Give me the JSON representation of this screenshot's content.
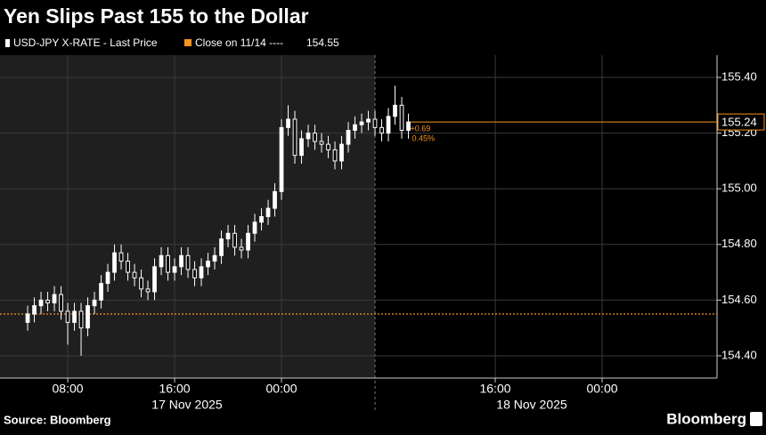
{
  "chart_data": {
    "type": "candlestick",
    "title": "Yen Slips Past 155 to the Dollar",
    "source": "Source: Bloomberg",
    "brand": "Bloomberg",
    "series": [
      {
        "name": "USD-JPY X-RATE - Last Price",
        "color": "#ffffff",
        "x": [
          5.0,
          5.5,
          6.0,
          6.5,
          7.0,
          7.5,
          8.0,
          8.5,
          9.0,
          9.5,
          10.0,
          10.5,
          11.0,
          11.5,
          12.0,
          12.5,
          13.0,
          13.5,
          14.0,
          14.5,
          15.0,
          15.5,
          16.0,
          16.5,
          17.0,
          17.5,
          18.0,
          18.5,
          19.0,
          19.5,
          20.0,
          20.5,
          21.0,
          21.5,
          22.0,
          22.5,
          23.0,
          23.5,
          24.0,
          24.5,
          25.0,
          25.5,
          26.0,
          26.5,
          27.0,
          27.5,
          28.0,
          28.5,
          29.0,
          29.5,
          30.0,
          30.5,
          31.0,
          31.5,
          32.0,
          32.5,
          33.0,
          33.5
        ],
        "open": [
          154.52,
          154.55,
          154.58,
          154.6,
          154.59,
          154.62,
          154.56,
          154.52,
          154.56,
          154.5,
          154.58,
          154.6,
          154.66,
          154.7,
          154.77,
          154.74,
          154.7,
          154.68,
          154.64,
          154.63,
          154.72,
          154.76,
          154.7,
          154.72,
          154.76,
          154.71,
          154.68,
          154.72,
          154.74,
          154.76,
          154.82,
          154.84,
          154.79,
          154.78,
          154.84,
          154.88,
          154.9,
          154.93,
          154.99,
          155.22,
          155.25,
          155.12,
          155.18,
          155.2,
          155.17,
          155.16,
          155.14,
          155.1,
          155.16,
          155.21,
          155.23,
          155.24,
          155.25,
          155.22,
          155.2,
          155.26,
          155.3,
          155.21
        ],
        "high": [
          154.58,
          154.61,
          154.63,
          154.63,
          154.65,
          154.65,
          154.59,
          154.59,
          154.59,
          154.61,
          154.63,
          154.69,
          154.73,
          154.8,
          154.8,
          154.77,
          154.73,
          154.71,
          154.67,
          154.75,
          154.79,
          154.79,
          154.75,
          154.79,
          154.79,
          154.74,
          154.75,
          154.77,
          154.79,
          154.85,
          154.87,
          154.87,
          154.82,
          154.87,
          154.91,
          154.93,
          154.96,
          155.02,
          155.25,
          155.3,
          155.28,
          155.21,
          155.23,
          155.23,
          155.2,
          155.19,
          155.17,
          155.19,
          155.24,
          155.26,
          155.27,
          155.28,
          155.28,
          155.25,
          155.29,
          155.37,
          155.33,
          155.27
        ],
        "low": [
          154.49,
          154.52,
          154.55,
          154.56,
          154.56,
          154.53,
          154.44,
          154.49,
          154.4,
          154.47,
          154.55,
          154.57,
          154.63,
          154.67,
          154.71,
          154.67,
          154.65,
          154.61,
          154.6,
          154.6,
          154.69,
          154.67,
          154.67,
          154.69,
          154.68,
          154.65,
          154.65,
          154.69,
          154.71,
          154.73,
          154.79,
          154.76,
          154.75,
          154.75,
          154.81,
          154.85,
          154.87,
          154.9,
          154.96,
          155.19,
          155.09,
          155.09,
          155.15,
          155.14,
          155.13,
          155.11,
          155.07,
          155.07,
          155.13,
          155.18,
          155.2,
          155.21,
          155.19,
          155.17,
          155.17,
          155.23,
          155.18,
          155.18
        ],
        "close": [
          154.55,
          154.58,
          154.6,
          154.59,
          154.62,
          154.56,
          154.52,
          154.56,
          154.5,
          154.58,
          154.6,
          154.66,
          154.7,
          154.77,
          154.74,
          154.7,
          154.68,
          154.64,
          154.63,
          154.72,
          154.76,
          154.7,
          154.72,
          154.76,
          154.71,
          154.68,
          154.72,
          154.74,
          154.76,
          154.82,
          154.84,
          154.79,
          154.78,
          154.84,
          154.88,
          154.9,
          154.93,
          154.99,
          155.22,
          155.25,
          155.12,
          155.18,
          155.2,
          155.17,
          155.16,
          155.14,
          155.1,
          155.16,
          155.21,
          155.23,
          155.24,
          155.25,
          155.22,
          155.2,
          155.26,
          155.3,
          155.21,
          155.24
        ]
      }
    ],
    "reference_line": {
      "name": "Close on 11/14 ----",
      "value": 154.55,
      "color": "#f7931e"
    },
    "last_price": {
      "value": 155.24,
      "color": "#f7931e"
    },
    "change": {
      "value": 0.69,
      "label": "+0.69"
    },
    "change_pct": {
      "value": 0.45,
      "label": "0.45%"
    },
    "xlim": [
      2.93,
      56.6
    ],
    "xticks": [
      {
        "value": 8,
        "label": "08:00"
      },
      {
        "value": 16,
        "label": "16:00"
      },
      {
        "value": 24,
        "label": "00:00"
      },
      {
        "value": 40,
        "label": "16:00"
      },
      {
        "value": 48,
        "label": "00:00"
      }
    ],
    "x_date_labels": [
      "17 Nov 2025",
      "18 Nov 2025"
    ],
    "session_divider": 31,
    "ylim": [
      154.32,
      155.48
    ],
    "yticks": [
      {
        "value": 154.4,
        "label": "154.40"
      },
      {
        "value": 154.6,
        "label": "154.60"
      },
      {
        "value": 154.8,
        "label": "154.80"
      },
      {
        "value": 155.0,
        "label": "155.00"
      },
      {
        "value": 155.2,
        "label": "155.20"
      },
      {
        "value": 155.4,
        "label": "155.40"
      }
    ],
    "grid": true
  }
}
